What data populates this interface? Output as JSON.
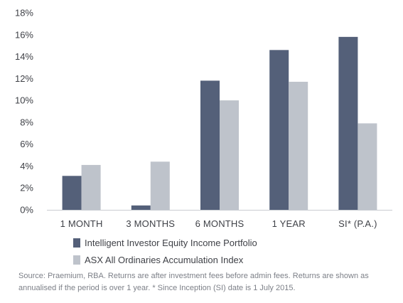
{
  "chart_data": {
    "type": "bar",
    "categories": [
      "1 MONTH",
      "3 MONTHS",
      "6 MONTHS",
      "1 YEAR",
      "SI* (P.A.)"
    ],
    "series": [
      {
        "name": "Intelligent Investor Equity Income Portfolio",
        "color": "#546079",
        "values": [
          3.1,
          0.4,
          11.8,
          14.6,
          15.8
        ]
      },
      {
        "name": "ASX All Ordinaries Accumulation Index",
        "color": "#bec3cb",
        "values": [
          4.1,
          4.4,
          10.0,
          11.7,
          7.9
        ]
      }
    ],
    "ylim": [
      0,
      18
    ],
    "yticks": [
      0,
      2,
      4,
      6,
      8,
      10,
      12,
      14,
      16,
      18
    ],
    "ytick_labels": [
      "0%",
      "2%",
      "4%",
      "6%",
      "8%",
      "10%",
      "12%",
      "14%",
      "16%",
      "18%"
    ],
    "xlabel": "",
    "ylabel": "",
    "grid": false,
    "legend_position": "bottom-left"
  },
  "source_note": "Source: Praemium, RBA. Returns are after investment fees before admin fees. Returns are shown as annualised if the period is over 1 year. * Since Inception (SI) date is 1 July 2015."
}
